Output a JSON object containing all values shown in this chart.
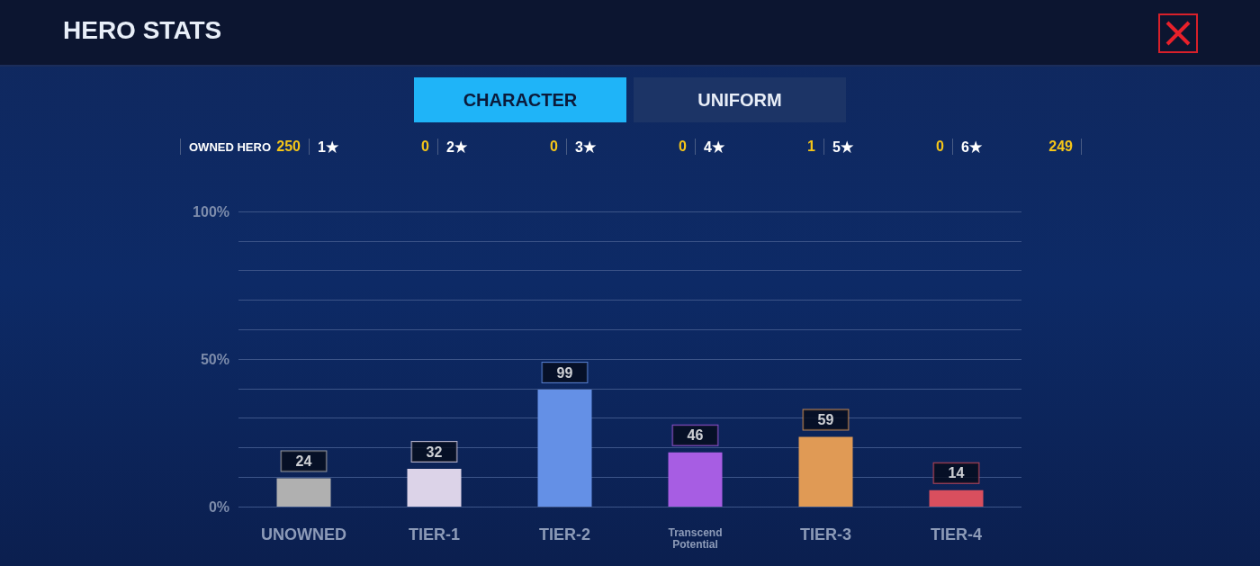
{
  "chart_data": {
    "type": "bar",
    "title": "HERO STATS",
    "annotations": [
      "CHARACTER",
      "UNIFORM",
      "OWNED HERO",
      "250",
      "1★",
      "0",
      "2★",
      "0",
      "3★",
      "0",
      "4★",
      "1",
      "5★",
      "0",
      "6★",
      "249",
      {
        "text": "24",
        "x": "UNOWNED",
        "y": 9.6
      },
      {
        "text": "32",
        "x": "TIER-1",
        "y": 12.8
      },
      {
        "text": "99",
        "x": "TIER-2",
        "y": 39.6
      },
      {
        "text": "46",
        "x": "Transcend Potential",
        "y": 18.4
      },
      {
        "text": "59",
        "x": "TIER-3",
        "y": 23.6
      },
      {
        "text": "14",
        "x": "TIER-4",
        "y": 5.6
      }
    ],
    "categories": [
      "UNOWNED",
      "TIER-1",
      "TIER-2",
      "Transcend Potential",
      "TIER-3",
      "TIER-4"
    ],
    "values": [
      9.6,
      12.8,
      39.6,
      18.4,
      23.6,
      5.6
    ],
    "colors": [
      "#b0b0b0",
      "#dcd3e8",
      "#6490e6",
      "#a75de3",
      "#e09a55",
      "#d94f5e"
    ],
    "ylim": [
      0,
      100
    ],
    "yticks": [
      {
        "value": 0,
        "label": "0%"
      },
      {
        "value": 10,
        "label": null
      },
      {
        "value": 20,
        "label": null
      },
      {
        "value": 30,
        "label": null
      },
      {
        "value": 40,
        "label": null
      },
      {
        "value": 50,
        "label": "50%"
      },
      {
        "value": 60,
        "label": null
      },
      {
        "value": 70,
        "label": null
      },
      {
        "value": 80,
        "label": null
      },
      {
        "value": 90,
        "label": null
      },
      {
        "value": 100,
        "label": "100%"
      }
    ],
    "grid": "y"
  }
}
